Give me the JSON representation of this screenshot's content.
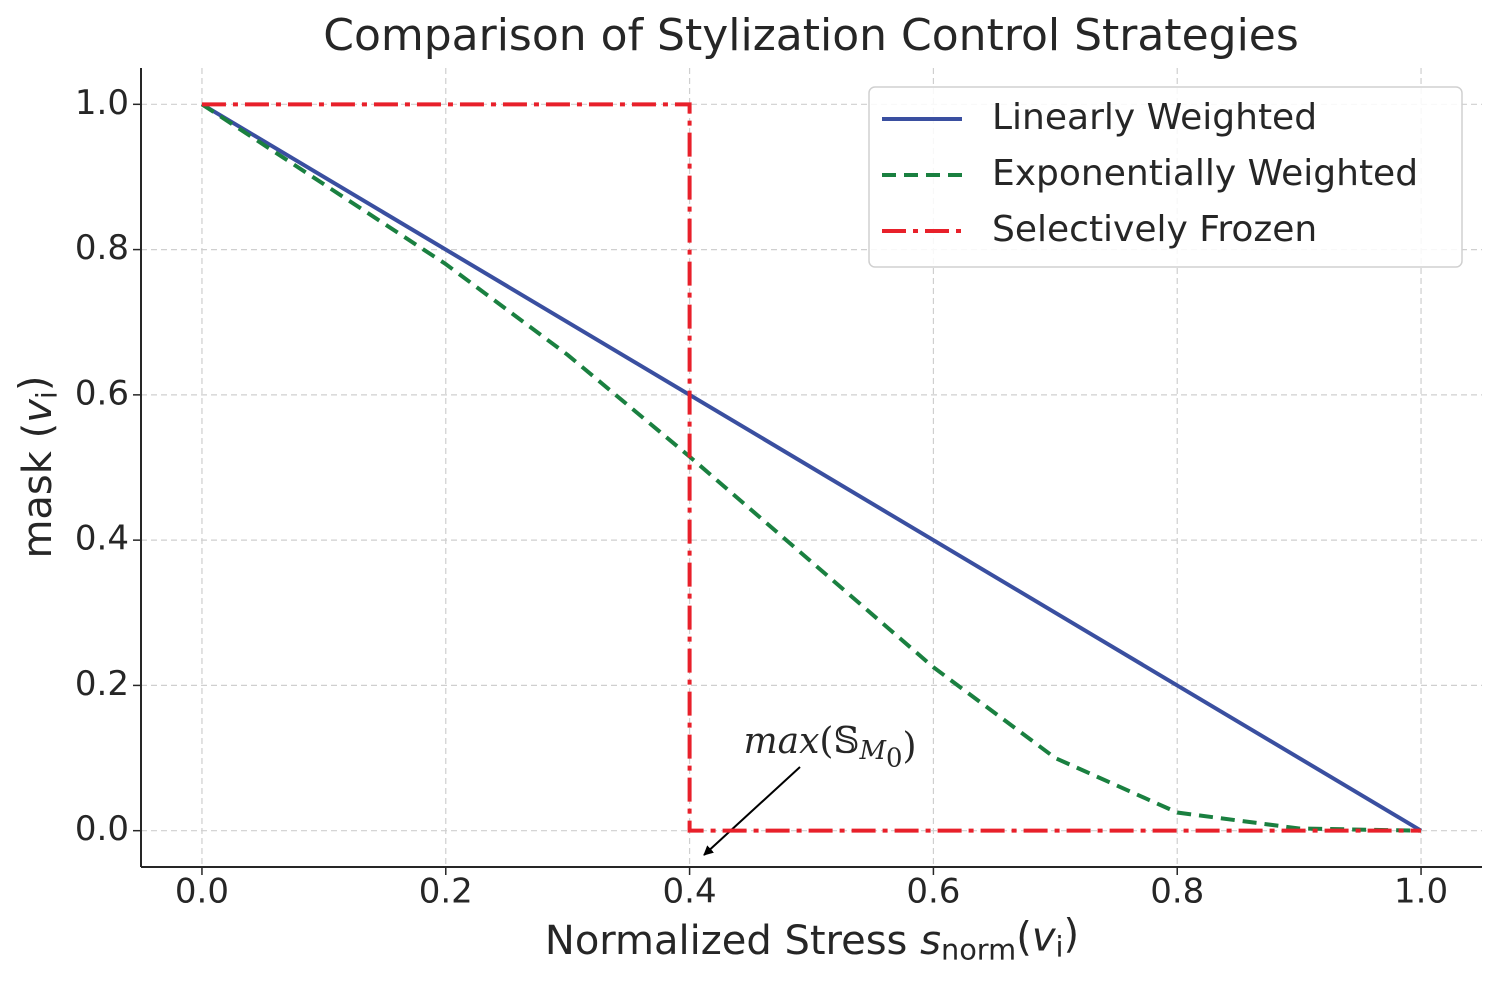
{
  "chart_data": {
    "type": "line",
    "title": "Comparison of Stylization Control Strategies",
    "xlabel": [
      "Normalized Stress ",
      "s",
      "norm",
      "(",
      "v",
      "i",
      ")"
    ],
    "ylabel": [
      "mask (",
      "v",
      "i",
      ")"
    ],
    "annotation": [
      "max",
      "(",
      "𝕊",
      "M",
      "0",
      ")"
    ],
    "xlim": [
      -0.05,
      1.05
    ],
    "ylim": [
      -0.05,
      1.05
    ],
    "xticks": [
      {
        "value": 0,
        "label": "0.0"
      },
      0.2,
      0.4,
      0.6,
      0.8,
      {
        "value": 1,
        "label": "1.0"
      }
    ],
    "yticks": [
      {
        "value": 0,
        "label": "0.0"
      },
      0.2,
      0.4,
      0.6,
      0.8,
      {
        "value": 1,
        "label": "1.0"
      }
    ],
    "grid": true,
    "legend": "upper right",
    "series": [
      {
        "name": "Linearly Weighted",
        "color": "#3a4fa0",
        "style": "solid",
        "x": [
          0,
          1
        ],
        "values": [
          1,
          0
        ]
      },
      {
        "name": "Exponentially Weighted",
        "color": "#1a8040",
        "style": "dashed",
        "x": [
          0,
          0.1,
          0.2,
          0.3,
          0.4,
          0.5,
          0.6,
          0.7,
          0.8,
          0.9,
          1.0
        ],
        "values": [
          1.0,
          0.89,
          0.78,
          0.655,
          0.515,
          0.37,
          0.225,
          0.1,
          0.025,
          0.003,
          0.0
        ]
      },
      {
        "name": "Selectively Frozen",
        "color": "#e8202a",
        "style": "dashdot",
        "x": [
          0,
          0.4,
          0.4,
          1.0
        ],
        "values": [
          1,
          1,
          0,
          0
        ]
      }
    ]
  }
}
